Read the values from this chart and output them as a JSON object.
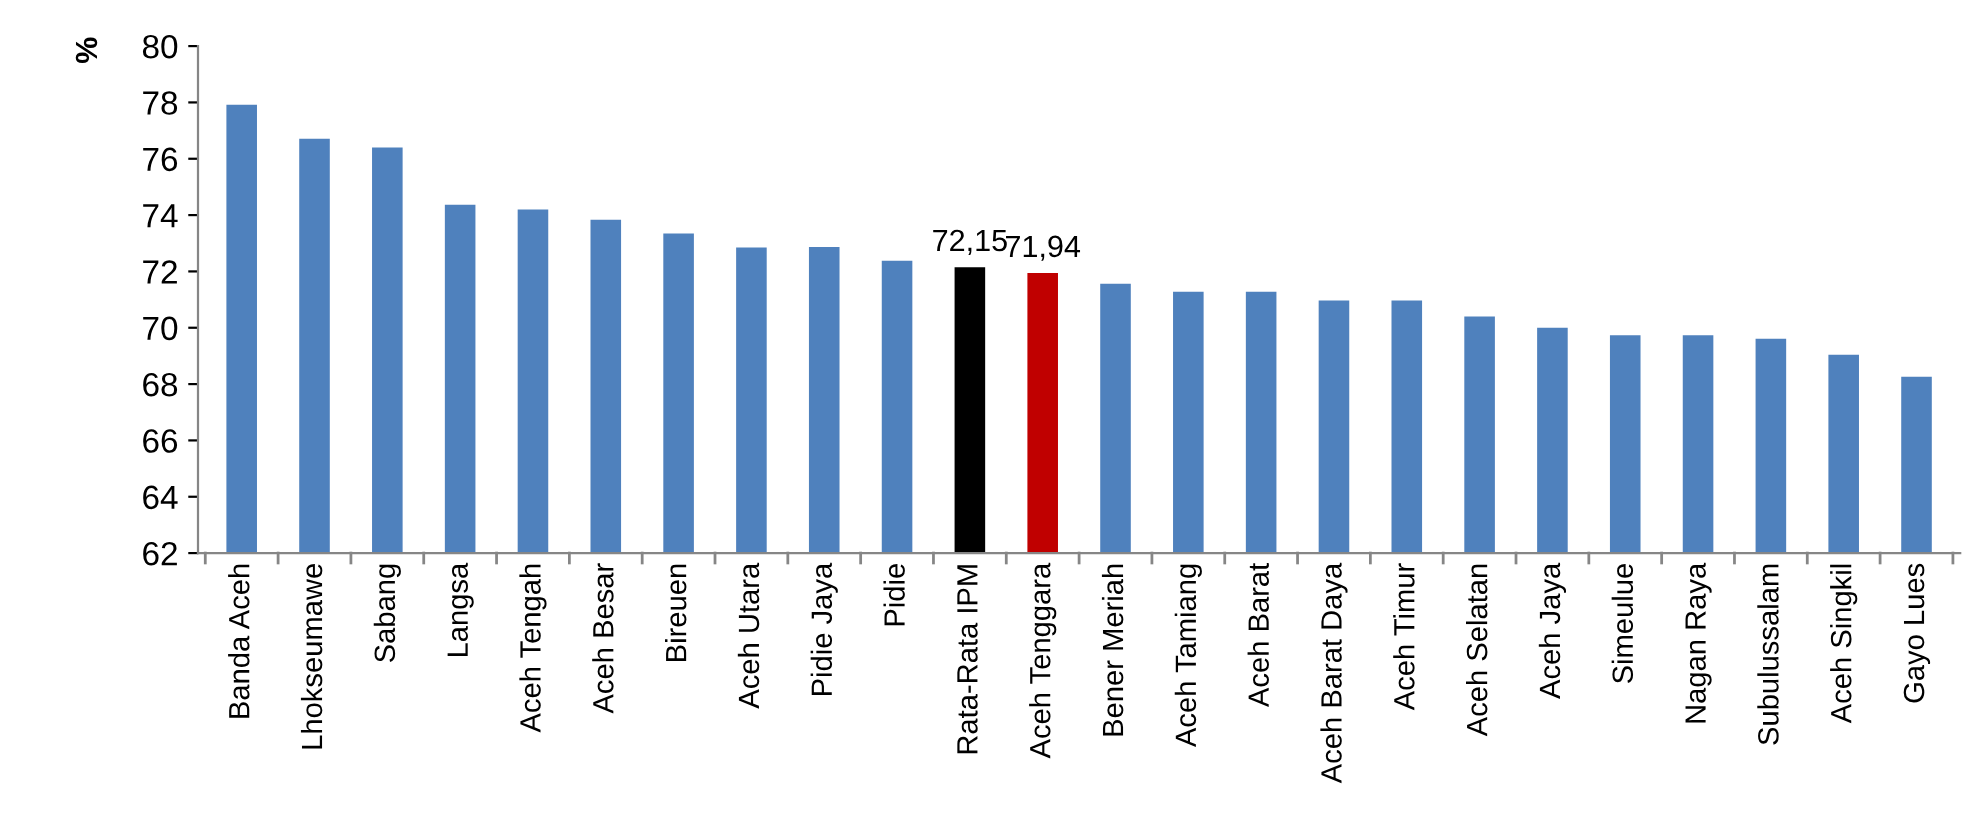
{
  "chart_data": {
    "type": "bar",
    "ylabel": "%",
    "categories": [
      "Banda Aceh",
      "Lhokseumawe",
      "Sabang",
      "Langsa",
      "Aceh Tengah",
      "Aceh Besar",
      "Bireuen",
      "Aceh Utara",
      "Pidie Jaya",
      "Pidie",
      "Rata-Rata IPM",
      "Aceh Tenggara",
      "Bener Meriah",
      "Aceh Tamiang",
      "Aceh Barat",
      "Aceh Barat Daya",
      "Aceh Timur",
      "Aceh Selatan",
      "Aceh Jaya",
      "Simeulue",
      "Nagan Raya",
      "Subulussalam",
      "Aceh Singkil",
      "Gayo Lues"
    ],
    "values": [
      77.92,
      76.71,
      76.4,
      74.37,
      74.2,
      73.83,
      73.35,
      72.85,
      72.87,
      72.38,
      72.15,
      71.94,
      71.56,
      71.28,
      71.28,
      70.97,
      70.97,
      70.4,
      70.0,
      69.73,
      69.73,
      69.61,
      69.04,
      68.26
    ],
    "colors": [
      "#4f81bd",
      "#4f81bd",
      "#4f81bd",
      "#4f81bd",
      "#4f81bd",
      "#4f81bd",
      "#4f81bd",
      "#4f81bd",
      "#4f81bd",
      "#4f81bd",
      "#000000",
      "#c00000",
      "#4f81bd",
      "#4f81bd",
      "#4f81bd",
      "#4f81bd",
      "#4f81bd",
      "#4f81bd",
      "#4f81bd",
      "#4f81bd",
      "#4f81bd",
      "#4f81bd",
      "#4f81bd",
      "#4f81bd"
    ],
    "value_labels": [
      null,
      null,
      null,
      null,
      null,
      null,
      null,
      null,
      null,
      null,
      "72,15",
      "71,94",
      null,
      null,
      null,
      null,
      null,
      null,
      null,
      null,
      null,
      null,
      null,
      null
    ],
    "ylim": [
      62,
      80
    ],
    "yticks": [
      62,
      64,
      66,
      68,
      70,
      72,
      74,
      76,
      78,
      80
    ],
    "grid": false,
    "legend": false
  }
}
